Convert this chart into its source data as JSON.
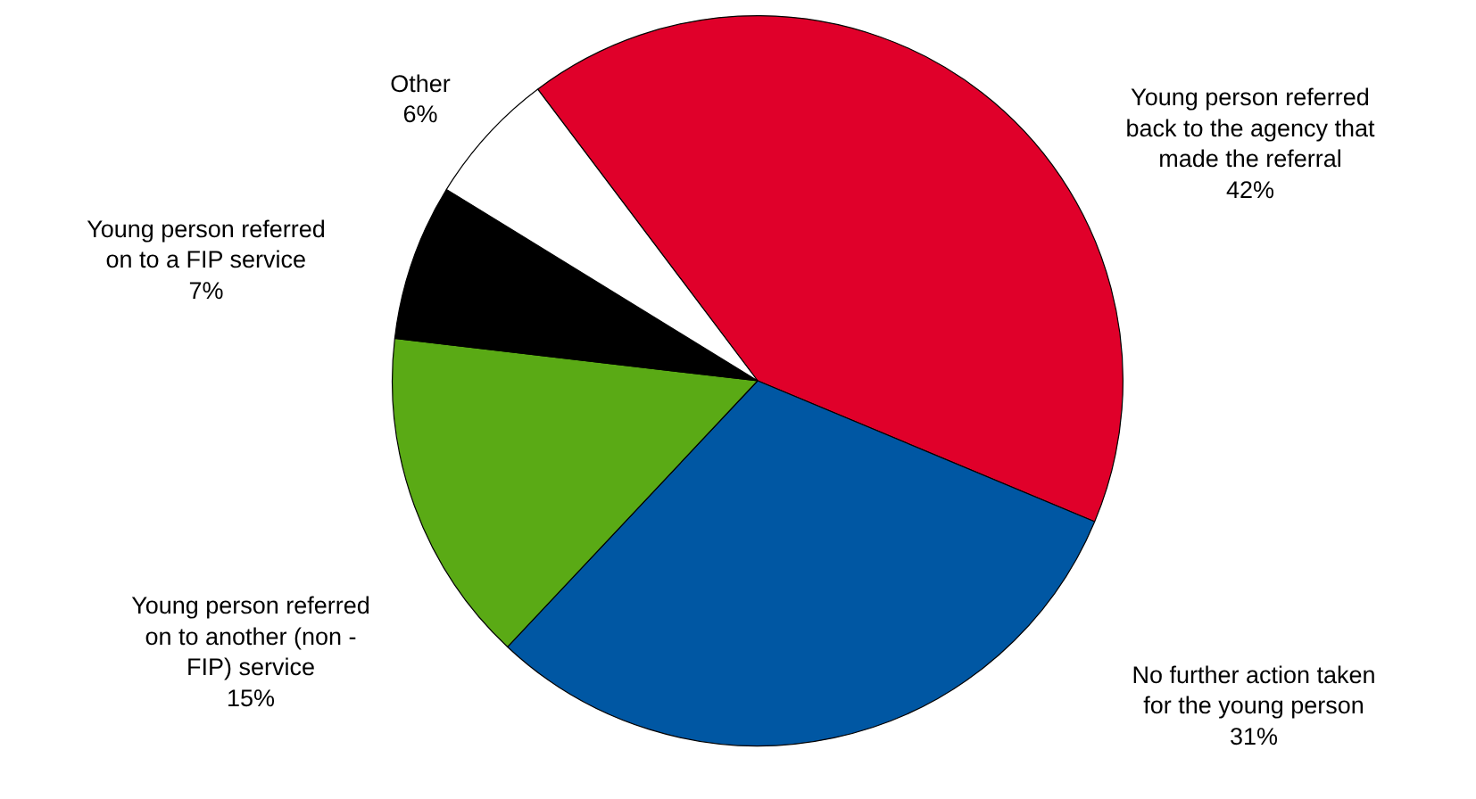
{
  "chart_data": {
    "type": "pie",
    "categories": [
      "Young person referred back to the agency that made the referral",
      "No further action taken for the young person",
      "Young person referred on to another (non - FIP) service",
      "Young person referred on to a FIP service",
      "Other"
    ],
    "values": [
      42,
      31,
      15,
      7,
      6
    ],
    "value_labels": [
      "42%",
      "31%",
      "15%",
      "7%",
      "6%"
    ],
    "colors": [
      "#e0002a",
      "#0057a3",
      "#5aaa15",
      "#000000",
      "#ffffff"
    ],
    "legend": false
  }
}
